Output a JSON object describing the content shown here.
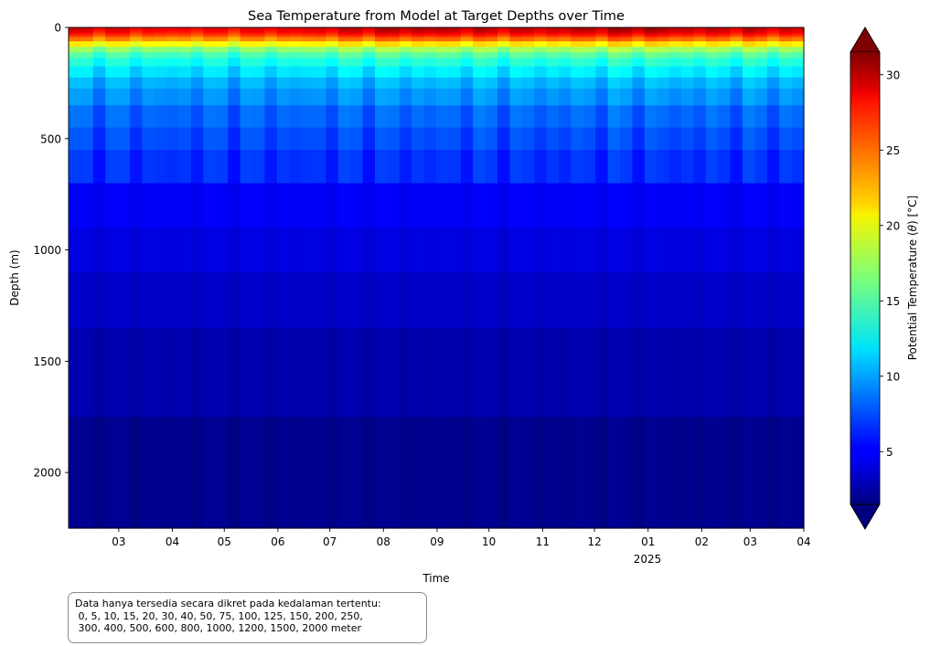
{
  "chart_data": {
    "type": "heatmap",
    "title": "Sea Temperature from Model at Target Depths over Time",
    "xlabel": "Time",
    "ylabel": "Depth (m)",
    "x_tick_labels": [
      "03",
      "04",
      "05",
      "06",
      "07",
      "08",
      "09",
      "10",
      "11",
      "12",
      "01",
      "02",
      "03",
      "04"
    ],
    "x_secondary_label": "2025",
    "x_range": [
      "2024-02-01",
      "2025-04-01"
    ],
    "y_range": [
      0,
      2250
    ],
    "y_inverted": true,
    "y_ticks": [
      0,
      500,
      1000,
      1500,
      2000
    ],
    "y_tick_labels": [
      "0",
      "500",
      "1000",
      "1500",
      "2000"
    ],
    "colorbar": {
      "label": "Potential Temperature (θ) [°C]",
      "label_prefix": "Potential Temperature (",
      "label_symbol": "θ",
      "label_suffix": ") [°C]",
      "colormap": "jet",
      "range": [
        1.5,
        31.5
      ],
      "ticks": [
        5,
        10,
        15,
        20,
        25,
        30
      ],
      "tick_labels": [
        "5",
        "10",
        "15",
        "20",
        "25",
        "30"
      ],
      "extend": "both"
    },
    "depths_m": [
      0,
      5,
      10,
      15,
      20,
      30,
      40,
      50,
      75,
      100,
      125,
      150,
      200,
      250,
      300,
      400,
      500,
      600,
      800,
      1000,
      1200,
      1500,
      2000
    ],
    "surface_temperature_c": [
      29,
      28.5,
      28,
      28,
      28.5,
      29,
      30,
      30,
      29.5,
      29.5,
      30,
      30.5,
      29.5,
      29.5,
      29
    ],
    "time_points": [
      "2024-02",
      "2024-03",
      "2024-04",
      "2024-05",
      "2024-06",
      "2024-07",
      "2024-08",
      "2024-09",
      "2024-10",
      "2024-11",
      "2024-12",
      "2025-01",
      "2025-02",
      "2025-03",
      "2025-04"
    ],
    "profile_temperature_c": [
      29,
      29,
      28.8,
      28.5,
      28,
      27,
      25.5,
      24,
      20.5,
      17,
      15,
      13.5,
      12,
      10.5,
      9.5,
      8.2,
      7.4,
      6.6,
      5,
      4.3,
      3.6,
      2.8,
      1.9
    ]
  },
  "note": {
    "text": "Data hanya tersedia secara dikret pada kedalaman tertentu:\n 0, 5, 10, 15, 20, 30, 40, 50, 75, 100, 125, 150, 200, 250,\n 300, 400, 500, 600, 800, 1000, 1200, 1500, 2000 meter"
  }
}
